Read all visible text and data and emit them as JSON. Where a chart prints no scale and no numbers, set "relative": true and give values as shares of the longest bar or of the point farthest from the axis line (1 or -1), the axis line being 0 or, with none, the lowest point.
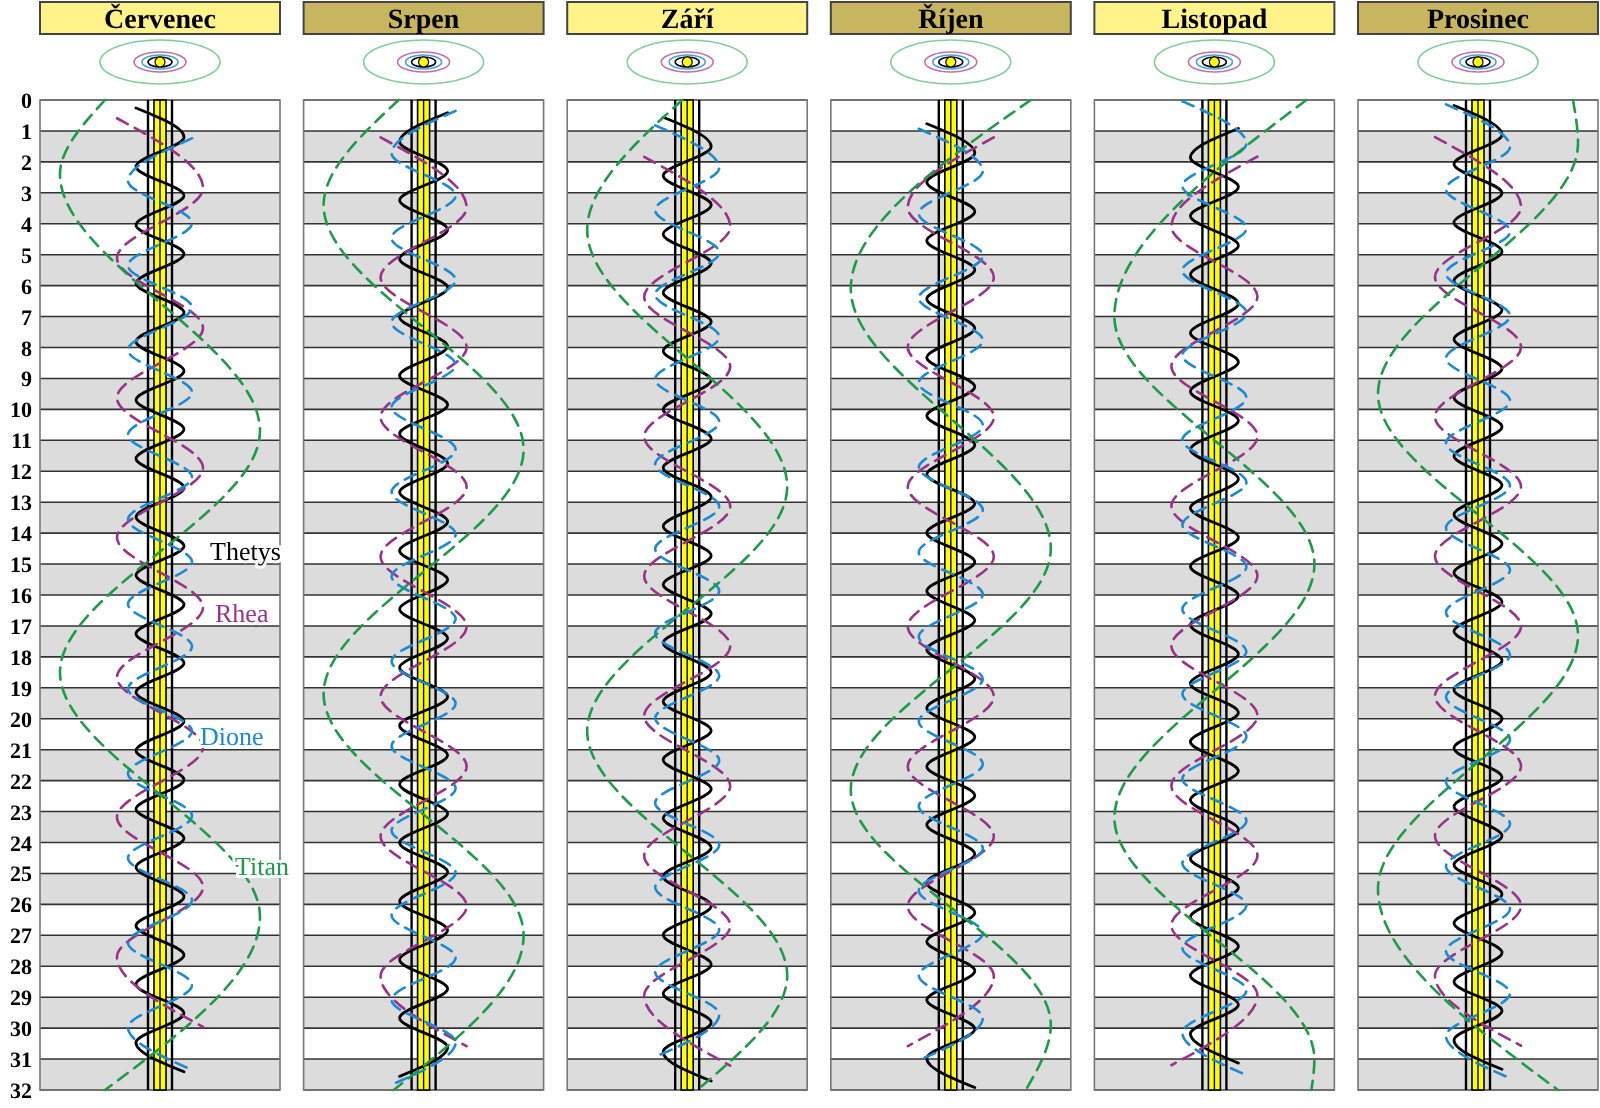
{
  "chart_data": [
    {
      "type": "line",
      "title": "Červenec",
      "orientation": "horizontal",
      "relative": true,
      "ylim": [
        32,
        0
      ],
      "yticks": [
        0,
        1,
        2,
        3,
        4,
        5,
        6,
        7,
        8,
        9,
        10,
        11,
        12,
        13,
        14,
        15,
        16,
        17,
        18,
        19,
        20,
        21,
        22,
        23,
        24,
        25,
        26,
        27,
        28,
        29,
        30,
        31,
        32
      ],
      "tick_labels": "y",
      "grid": "y",
      "bands": [
        {
          "axis": "y",
          "from": 1,
          "to": 2,
          "color": "#dcdcdc"
        },
        {
          "axis": "y",
          "from": 3,
          "to": 4,
          "color": "#dcdcdc"
        },
        {
          "axis": "y",
          "from": 5,
          "to": 6,
          "color": "#dcdcdc"
        },
        {
          "axis": "y",
          "from": 7,
          "to": 8,
          "color": "#dcdcdc"
        },
        {
          "axis": "y",
          "from": 9,
          "to": 10,
          "color": "#dcdcdc"
        },
        {
          "axis": "y",
          "from": 11,
          "to": 12,
          "color": "#dcdcdc"
        },
        {
          "axis": "y",
          "from": 13,
          "to": 14,
          "color": "#dcdcdc"
        },
        {
          "axis": "y",
          "from": 15,
          "to": 16,
          "color": "#dcdcdc"
        },
        {
          "axis": "y",
          "from": 17,
          "to": 18,
          "color": "#dcdcdc"
        },
        {
          "axis": "y",
          "from": 19,
          "to": 20,
          "color": "#dcdcdc"
        },
        {
          "axis": "y",
          "from": 21,
          "to": 22,
          "color": "#dcdcdc"
        },
        {
          "axis": "y",
          "from": 23,
          "to": 24,
          "color": "#dcdcdc"
        },
        {
          "axis": "y",
          "from": 25,
          "to": 26,
          "color": "#dcdcdc"
        },
        {
          "axis": "y",
          "from": 27,
          "to": 28,
          "color": "#dcdcdc"
        },
        {
          "axis": "y",
          "from": 29,
          "to": 30,
          "color": "#dcdcdc"
        },
        {
          "axis": "y",
          "from": 31,
          "to": 32,
          "color": "#dcdcdc"
        },
        {
          "axis": "x",
          "from": -0.06,
          "to": 0.06,
          "color": "#ffff00"
        }
      ],
      "ref_lines": [
        {
          "axis": "x",
          "value": -0.12,
          "color": "#000000"
        },
        {
          "axis": "x",
          "value": 0.12,
          "color": "#000000"
        }
      ],
      "series": [
        {
          "name": "Thetys",
          "color": "#000000",
          "line_style": "solid",
          "x": [
            0.26,
            1.2,
            2.15,
            3.09,
            4.04,
            4.98,
            5.92,
            6.87,
            7.81,
            8.76,
            9.7,
            10.64,
            11.59,
            12.53,
            13.48,
            14.42,
            15.36,
            16.31,
            17.25,
            18.2,
            19.14,
            20.08,
            21.03,
            21.97,
            22.92,
            23.86,
            24.8,
            25.75,
            26.69,
            27.64,
            28.58,
            29.52,
            30.47,
            31.41
          ],
          "values": [
            -0.24,
            0.24,
            -0.24,
            0.24,
            -0.24,
            0.24,
            -0.24,
            0.24,
            -0.24,
            0.24,
            -0.24,
            0.24,
            -0.24,
            0.24,
            -0.24,
            0.24,
            -0.24,
            0.24,
            -0.24,
            0.24,
            -0.24,
            0.24,
            -0.24,
            0.24,
            -0.24,
            0.24,
            -0.24,
            0.24,
            -0.24,
            0.24,
            -0.24,
            0.24,
            -0.24,
            0.24
          ]
        },
        {
          "name": "Rhea",
          "color": "#993388",
          "line_style": "dashed",
          "x": [
            0.59,
            2.85,
            5.11,
            7.37,
            9.63,
            11.89,
            14.14,
            16.4,
            18.66,
            20.92,
            23.18,
            25.44,
            27.7,
            29.96
          ],
          "values": [
            -0.43,
            0.43,
            -0.43,
            0.43,
            -0.43,
            0.43,
            -0.43,
            0.43,
            -0.43,
            0.43,
            -0.43,
            0.43,
            -0.43,
            0.43
          ]
        },
        {
          "name": "Dione",
          "color": "#1a8ad4",
          "line_style": "dashed",
          "x": [
            1.24,
            2.61,
            3.98,
            5.35,
            6.71,
            8.08,
            9.45,
            10.82,
            12.19,
            13.56,
            14.93,
            16.29,
            17.66,
            19.03,
            20.4,
            21.77,
            23.14,
            24.5,
            25.87,
            27.24,
            28.61,
            29.98,
            31.35
          ],
          "values": [
            0.32,
            -0.32,
            0.32,
            -0.32,
            0.32,
            -0.32,
            0.32,
            -0.32,
            0.32,
            -0.32,
            0.32,
            -0.32,
            0.32,
            -0.32,
            0.32,
            -0.32,
            0.32,
            -0.32,
            0.32,
            -0.32,
            0.32,
            -0.32,
            0.32
          ]
        },
        {
          "name": "Titan",
          "color": "#1f9a4a",
          "line_style": "dashed",
          "x": [
            0,
            2.4,
            10.7,
            18.5,
            26.4,
            32
          ],
          "values": [
            -0.55,
            -1,
            1,
            -1,
            1,
            -0.55
          ]
        }
      ]
    },
    {
      "type": "line",
      "title": "Srpen",
      "orientation": "horizontal",
      "relative": true,
      "ylim": [
        32,
        0
      ],
      "yticks": [
        0,
        1,
        2,
        3,
        4,
        5,
        6,
        7,
        8,
        9,
        10,
        11,
        12,
        13,
        14,
        15,
        16,
        17,
        18,
        19,
        20,
        21,
        22,
        23,
        24,
        25,
        26,
        27,
        28,
        29,
        30,
        31,
        32
      ],
      "tick_labels": false,
      "grid": "y",
      "bands": [
        {
          "axis": "y",
          "from": 1,
          "to": 2,
          "color": "#dcdcdc"
        },
        {
          "axis": "y",
          "from": 3,
          "to": 4,
          "color": "#dcdcdc"
        },
        {
          "axis": "y",
          "from": 5,
          "to": 6,
          "color": "#dcdcdc"
        },
        {
          "axis": "y",
          "from": 7,
          "to": 8,
          "color": "#dcdcdc"
        },
        {
          "axis": "y",
          "from": 9,
          "to": 10,
          "color": "#dcdcdc"
        },
        {
          "axis": "y",
          "from": 11,
          "to": 12,
          "color": "#dcdcdc"
        },
        {
          "axis": "y",
          "from": 13,
          "to": 14,
          "color": "#dcdcdc"
        },
        {
          "axis": "y",
          "from": 15,
          "to": 16,
          "color": "#dcdcdc"
        },
        {
          "axis": "y",
          "from": 17,
          "to": 18,
          "color": "#dcdcdc"
        },
        {
          "axis": "y",
          "from": 19,
          "to": 20,
          "color": "#dcdcdc"
        },
        {
          "axis": "y",
          "from": 21,
          "to": 22,
          "color": "#dcdcdc"
        },
        {
          "axis": "y",
          "from": 23,
          "to": 24,
          "color": "#dcdcdc"
        },
        {
          "axis": "y",
          "from": 25,
          "to": 26,
          "color": "#dcdcdc"
        },
        {
          "axis": "y",
          "from": 27,
          "to": 28,
          "color": "#dcdcdc"
        },
        {
          "axis": "y",
          "from": 29,
          "to": 30,
          "color": "#dcdcdc"
        },
        {
          "axis": "y",
          "from": 31,
          "to": 32,
          "color": "#dcdcdc"
        },
        {
          "axis": "x",
          "from": -0.06,
          "to": 0.06,
          "color": "#ffff00"
        }
      ],
      "ref_lines": [
        {
          "axis": "x",
          "value": -0.12,
          "color": "#000000"
        },
        {
          "axis": "x",
          "value": 0.12,
          "color": "#000000"
        }
      ],
      "series": [
        {
          "color": "#000000",
          "line_style": "solid",
          "x": [
            0.41,
            1.35,
            2.3,
            3.24,
            4.19,
            5.13,
            6.07,
            7.02,
            7.96,
            8.91,
            9.85,
            10.79,
            11.74,
            12.68,
            13.63,
            14.57,
            15.51,
            16.46,
            17.4,
            18.35,
            19.29,
            20.23,
            21.18,
            22.12,
            23.07,
            24.01,
            24.95,
            25.9,
            26.84,
            27.79,
            28.73,
            29.67,
            30.62,
            31.56
          ],
          "values": [
            0.24,
            -0.24,
            0.24,
            -0.24,
            0.24,
            -0.24,
            0.24,
            -0.24,
            0.24,
            -0.24,
            0.24,
            -0.24,
            0.24,
            -0.24,
            0.24,
            -0.24,
            0.24,
            -0.24,
            0.24,
            -0.24,
            0.24,
            -0.24,
            0.24,
            -0.24,
            0.24,
            -0.24,
            0.24,
            -0.24,
            0.24,
            -0.24,
            0.24,
            -0.24,
            0.24,
            -0.24
          ]
        },
        {
          "color": "#993388",
          "line_style": "dashed",
          "x": [
            1.21,
            3.47,
            5.73,
            7.99,
            10.25,
            12.51,
            14.76,
            17.02,
            19.28,
            21.54,
            23.8,
            26.06,
            28.32,
            30.58
          ],
          "values": [
            -0.43,
            0.43,
            -0.43,
            0.43,
            -0.43,
            0.43,
            -0.43,
            0.43,
            -0.43,
            0.43,
            -0.43,
            0.43,
            -0.43,
            0.43
          ]
        },
        {
          "color": "#1a8ad4",
          "line_style": "dashed",
          "x": [
            0.35,
            1.72,
            3.09,
            4.46,
            5.82,
            7.19,
            8.56,
            9.93,
            11.3,
            12.67,
            14.04,
            15.4,
            16.77,
            18.14,
            19.51,
            20.88,
            22.25,
            23.61,
            24.98,
            26.35,
            27.72,
            29.09,
            30.46,
            31.83
          ],
          "values": [
            0.32,
            -0.32,
            0.32,
            -0.32,
            0.32,
            -0.32,
            0.32,
            -0.32,
            0.32,
            -0.32,
            0.32,
            -0.32,
            0.32,
            -0.32,
            0.32,
            -0.32,
            0.32,
            -0.32,
            0.32,
            -0.32,
            0.32,
            -0.32,
            0.32,
            -0.32
          ]
        },
        {
          "color": "#1f9a4a",
          "line_style": "dashed",
          "x": [
            0,
            3.4,
            11.3,
            19.2,
            27.0,
            32
          ],
          "values": [
            -0.25,
            -1,
            1,
            -1,
            1,
            -0.3
          ]
        }
      ]
    },
    {
      "type": "line",
      "title": "Září",
      "orientation": "horizontal",
      "relative": true,
      "ylim": [
        32,
        0
      ],
      "yticks": [
        0,
        1,
        2,
        3,
        4,
        5,
        6,
        7,
        8,
        9,
        10,
        11,
        12,
        13,
        14,
        15,
        16,
        17,
        18,
        19,
        20,
        21,
        22,
        23,
        24,
        25,
        26,
        27,
        28,
        29,
        30,
        31,
        32
      ],
      "tick_labels": false,
      "grid": "y",
      "bands": [
        {
          "axis": "y",
          "from": 1,
          "to": 2,
          "color": "#dcdcdc"
        },
        {
          "axis": "y",
          "from": 3,
          "to": 4,
          "color": "#dcdcdc"
        },
        {
          "axis": "y",
          "from": 5,
          "to": 6,
          "color": "#dcdcdc"
        },
        {
          "axis": "y",
          "from": 7,
          "to": 8,
          "color": "#dcdcdc"
        },
        {
          "axis": "y",
          "from": 9,
          "to": 10,
          "color": "#dcdcdc"
        },
        {
          "axis": "y",
          "from": 11,
          "to": 12,
          "color": "#dcdcdc"
        },
        {
          "axis": "y",
          "from": 13,
          "to": 14,
          "color": "#dcdcdc"
        },
        {
          "axis": "y",
          "from": 15,
          "to": 16,
          "color": "#dcdcdc"
        },
        {
          "axis": "y",
          "from": 17,
          "to": 18,
          "color": "#dcdcdc"
        },
        {
          "axis": "y",
          "from": 19,
          "to": 20,
          "color": "#dcdcdc"
        },
        {
          "axis": "y",
          "from": 21,
          "to": 22,
          "color": "#dcdcdc"
        },
        {
          "axis": "y",
          "from": 23,
          "to": 24,
          "color": "#dcdcdc"
        },
        {
          "axis": "y",
          "from": 25,
          "to": 26,
          "color": "#dcdcdc"
        },
        {
          "axis": "y",
          "from": 27,
          "to": 28,
          "color": "#dcdcdc"
        },
        {
          "axis": "y",
          "from": 29,
          "to": 30,
          "color": "#dcdcdc"
        },
        {
          "axis": "y",
          "from": 31,
          "to": 32,
          "color": "#dcdcdc"
        },
        {
          "axis": "x",
          "from": -0.06,
          "to": 0.06,
          "color": "#ffff00"
        }
      ],
      "ref_lines": [
        {
          "axis": "x",
          "value": -0.12,
          "color": "#000000"
        },
        {
          "axis": "x",
          "value": 0.12,
          "color": "#000000"
        }
      ],
      "series": [
        {
          "color": "#000000",
          "line_style": "solid",
          "x": [
            0.56,
            1.5,
            2.45,
            3.39,
            4.34,
            5.28,
            6.22,
            7.17,
            8.11,
            9.06,
            10.0,
            10.94,
            11.89,
            12.83,
            13.78,
            14.72,
            15.66,
            16.61,
            17.55,
            18.5,
            19.44,
            20.38,
            21.33,
            22.27,
            23.22,
            24.16,
            25.1,
            26.05,
            26.99,
            27.94,
            28.88,
            29.82,
            30.77,
            31.71
          ],
          "values": [
            -0.24,
            0.24,
            -0.24,
            0.24,
            -0.24,
            0.24,
            -0.24,
            0.24,
            -0.24,
            0.24,
            -0.24,
            0.24,
            -0.24,
            0.24,
            -0.24,
            0.24,
            -0.24,
            0.24,
            -0.24,
            0.24,
            -0.24,
            0.24,
            -0.24,
            0.24,
            -0.24,
            0.24,
            -0.24,
            0.24,
            -0.24,
            0.24,
            -0.24,
            0.24,
            -0.24,
            0.24
          ]
        },
        {
          "color": "#993388",
          "line_style": "dashed",
          "x": [
            1.84,
            4.1,
            6.36,
            8.62,
            10.88,
            13.14,
            15.39,
            17.65,
            19.91,
            22.17,
            24.43,
            26.69,
            28.95,
            31.21
          ],
          "values": [
            -0.43,
            0.43,
            -0.43,
            0.43,
            -0.43,
            0.43,
            -0.43,
            0.43,
            -0.43,
            0.43,
            -0.43,
            0.43,
            -0.43,
            0.43
          ]
        },
        {
          "color": "#1a8ad4",
          "line_style": "dashed",
          "x": [
            0.82,
            2.19,
            3.56,
            4.93,
            6.29,
            7.66,
            9.03,
            10.4,
            11.77,
            13.14,
            14.51,
            15.87,
            17.24,
            18.61,
            19.98,
            21.35,
            22.72,
            24.08,
            25.45,
            26.82,
            28.19,
            29.56,
            30.93
          ],
          "values": [
            -0.32,
            0.32,
            -0.32,
            0.32,
            -0.32,
            0.32,
            -0.32,
            0.32,
            -0.32,
            0.32,
            -0.32,
            0.32,
            -0.32,
            0.32,
            -0.32,
            0.32,
            -0.32,
            0.32,
            -0.32,
            0.32,
            -0.32,
            0.32,
            -0.32
          ]
        },
        {
          "color": "#1f9a4a",
          "line_style": "dashed",
          "x": [
            0,
            4.2,
            12.5,
            20.4,
            28.3,
            32
          ],
          "values": [
            -0.05,
            -1,
            1,
            -1,
            1,
            0.1
          ]
        }
      ]
    },
    {
      "type": "line",
      "title": "Říjen",
      "orientation": "horizontal",
      "relative": true,
      "ylim": [
        32,
        0
      ],
      "yticks": [
        0,
        1,
        2,
        3,
        4,
        5,
        6,
        7,
        8,
        9,
        10,
        11,
        12,
        13,
        14,
        15,
        16,
        17,
        18,
        19,
        20,
        21,
        22,
        23,
        24,
        25,
        26,
        27,
        28,
        29,
        30,
        31,
        32
      ],
      "tick_labels": false,
      "grid": "y",
      "bands": [
        {
          "axis": "y",
          "from": 1,
          "to": 2,
          "color": "#dcdcdc"
        },
        {
          "axis": "y",
          "from": 3,
          "to": 4,
          "color": "#dcdcdc"
        },
        {
          "axis": "y",
          "from": 5,
          "to": 6,
          "color": "#dcdcdc"
        },
        {
          "axis": "y",
          "from": 7,
          "to": 8,
          "color": "#dcdcdc"
        },
        {
          "axis": "y",
          "from": 9,
          "to": 10,
          "color": "#dcdcdc"
        },
        {
          "axis": "y",
          "from": 11,
          "to": 12,
          "color": "#dcdcdc"
        },
        {
          "axis": "y",
          "from": 13,
          "to": 14,
          "color": "#dcdcdc"
        },
        {
          "axis": "y",
          "from": 15,
          "to": 16,
          "color": "#dcdcdc"
        },
        {
          "axis": "y",
          "from": 17,
          "to": 18,
          "color": "#dcdcdc"
        },
        {
          "axis": "y",
          "from": 19,
          "to": 20,
          "color": "#dcdcdc"
        },
        {
          "axis": "y",
          "from": 21,
          "to": 22,
          "color": "#dcdcdc"
        },
        {
          "axis": "y",
          "from": 23,
          "to": 24,
          "color": "#dcdcdc"
        },
        {
          "axis": "y",
          "from": 25,
          "to": 26,
          "color": "#dcdcdc"
        },
        {
          "axis": "y",
          "from": 27,
          "to": 28,
          "color": "#dcdcdc"
        },
        {
          "axis": "y",
          "from": 29,
          "to": 30,
          "color": "#dcdcdc"
        },
        {
          "axis": "y",
          "from": 31,
          "to": 32,
          "color": "#dcdcdc"
        },
        {
          "axis": "x",
          "from": -0.06,
          "to": 0.06,
          "color": "#ffff00"
        }
      ],
      "ref_lines": [
        {
          "axis": "x",
          "value": -0.12,
          "color": "#000000"
        },
        {
          "axis": "x",
          "value": 0.12,
          "color": "#000000"
        }
      ],
      "series": [
        {
          "color": "#000000",
          "line_style": "solid",
          "x": [
            0.77,
            1.71,
            2.66,
            3.6,
            4.55,
            5.49,
            6.43,
            7.38,
            8.32,
            9.27,
            10.21,
            11.15,
            12.1,
            13.04,
            13.99,
            14.93,
            15.87,
            16.82,
            17.76,
            18.71,
            19.65,
            20.59,
            21.54,
            22.48,
            23.43,
            24.37,
            25.31,
            26.26,
            27.2,
            28.15,
            29.09,
            30.03,
            30.98,
            31.92
          ],
          "values": [
            -0.24,
            0.24,
            -0.24,
            0.24,
            -0.24,
            0.24,
            -0.24,
            0.24,
            -0.24,
            0.24,
            -0.24,
            0.24,
            -0.24,
            0.24,
            -0.24,
            0.24,
            -0.24,
            0.24,
            -0.24,
            0.24,
            -0.24,
            0.24,
            -0.24,
            0.24,
            -0.24,
            0.24,
            -0.24,
            0.24,
            -0.24,
            0.24,
            -0.24,
            0.24,
            -0.24,
            0.24
          ]
        },
        {
          "color": "#993388",
          "line_style": "dashed",
          "x": [
            1.21,
            3.47,
            5.73,
            7.99,
            10.25,
            12.51,
            14.76,
            17.02,
            19.28,
            21.54,
            23.8,
            26.06,
            28.32,
            30.58
          ],
          "values": [
            0.43,
            -0.43,
            0.43,
            -0.43,
            0.43,
            -0.43,
            0.43,
            -0.43,
            0.43,
            -0.43,
            0.43,
            -0.43,
            0.43,
            -0.43
          ]
        },
        {
          "color": "#1a8ad4",
          "line_style": "dashed",
          "x": [
            0.93,
            2.3,
            3.67,
            5.04,
            6.4,
            7.77,
            9.14,
            10.51,
            11.88,
            13.25,
            14.62,
            15.98,
            17.35,
            18.72,
            20.09,
            21.46,
            22.83,
            24.19,
            25.56,
            26.93,
            28.3,
            29.67,
            31.04
          ],
          "values": [
            -0.32,
            0.32,
            -0.32,
            0.32,
            -0.32,
            0.32,
            -0.32,
            0.32,
            -0.32,
            0.32,
            -0.32,
            0.32,
            -0.32,
            0.32,
            -0.32,
            0.32,
            -0.32,
            0.32,
            -0.32,
            0.32,
            -0.32,
            0.32,
            -0.32
          ]
        },
        {
          "color": "#1f9a4a",
          "line_style": "dashed",
          "x": [
            0,
            6.1,
            14.5,
            22.3,
            29.9,
            32
          ],
          "values": [
            0.8,
            -1,
            1,
            -1,
            1,
            0.75
          ]
        }
      ]
    },
    {
      "type": "line",
      "title": "Listopad",
      "orientation": "horizontal",
      "relative": true,
      "ylim": [
        32,
        0
      ],
      "yticks": [
        0,
        1,
        2,
        3,
        4,
        5,
        6,
        7,
        8,
        9,
        10,
        11,
        12,
        13,
        14,
        15,
        16,
        17,
        18,
        19,
        20,
        21,
        22,
        23,
        24,
        25,
        26,
        27,
        28,
        29,
        30,
        31,
        32
      ],
      "tick_labels": false,
      "grid": "y",
      "bands": [
        {
          "axis": "y",
          "from": 1,
          "to": 2,
          "color": "#dcdcdc"
        },
        {
          "axis": "y",
          "from": 3,
          "to": 4,
          "color": "#dcdcdc"
        },
        {
          "axis": "y",
          "from": 5,
          "to": 6,
          "color": "#dcdcdc"
        },
        {
          "axis": "y",
          "from": 7,
          "to": 8,
          "color": "#dcdcdc"
        },
        {
          "axis": "y",
          "from": 9,
          "to": 10,
          "color": "#dcdcdc"
        },
        {
          "axis": "y",
          "from": 11,
          "to": 12,
          "color": "#dcdcdc"
        },
        {
          "axis": "y",
          "from": 13,
          "to": 14,
          "color": "#dcdcdc"
        },
        {
          "axis": "y",
          "from": 15,
          "to": 16,
          "color": "#dcdcdc"
        },
        {
          "axis": "y",
          "from": 17,
          "to": 18,
          "color": "#dcdcdc"
        },
        {
          "axis": "y",
          "from": 19,
          "to": 20,
          "color": "#dcdcdc"
        },
        {
          "axis": "y",
          "from": 21,
          "to": 22,
          "color": "#dcdcdc"
        },
        {
          "axis": "y",
          "from": 23,
          "to": 24,
          "color": "#dcdcdc"
        },
        {
          "axis": "y",
          "from": 25,
          "to": 26,
          "color": "#dcdcdc"
        },
        {
          "axis": "y",
          "from": 27,
          "to": 28,
          "color": "#dcdcdc"
        },
        {
          "axis": "y",
          "from": 29,
          "to": 30,
          "color": "#dcdcdc"
        },
        {
          "axis": "y",
          "from": 31,
          "to": 32,
          "color": "#dcdcdc"
        },
        {
          "axis": "x",
          "from": -0.06,
          "to": 0.06,
          "color": "#ffff00"
        }
      ],
      "ref_lines": [
        {
          "axis": "x",
          "value": -0.12,
          "color": "#000000"
        },
        {
          "axis": "x",
          "value": 0.12,
          "color": "#000000"
        }
      ],
      "series": [
        {
          "color": "#000000",
          "line_style": "solid",
          "x": [
            0.92,
            1.86,
            2.81,
            3.75,
            4.7,
            5.64,
            6.58,
            7.53,
            8.47,
            9.42,
            10.36,
            11.3,
            12.25,
            13.19,
            14.14,
            15.08,
            16.02,
            16.97,
            17.91,
            18.86,
            19.8,
            20.74,
            21.69,
            22.63,
            23.58,
            24.52,
            25.46,
            26.41,
            27.35,
            28.3,
            29.24,
            30.18,
            31.13
          ],
          "values": [
            0.24,
            -0.24,
            0.24,
            -0.24,
            0.24,
            -0.24,
            0.24,
            -0.24,
            0.24,
            -0.24,
            0.24,
            -0.24,
            0.24,
            -0.24,
            0.24,
            -0.24,
            0.24,
            -0.24,
            0.24,
            -0.24,
            0.24,
            -0.24,
            0.24,
            -0.24,
            0.24,
            -0.24,
            0.24,
            -0.24,
            0.24,
            -0.24,
            0.24,
            -0.24,
            0.24
          ]
        },
        {
          "color": "#993388",
          "line_style": "dashed",
          "x": [
            1.83,
            4.09,
            6.35,
            8.61,
            10.87,
            13.13,
            15.38,
            17.64,
            19.9,
            22.16,
            24.42,
            26.68,
            28.94,
            31.2
          ],
          "values": [
            0.43,
            -0.43,
            0.43,
            -0.43,
            0.43,
            -0.43,
            0.43,
            -0.43,
            0.43,
            -0.43,
            0.43,
            -0.43,
            0.43,
            -0.43
          ]
        },
        {
          "color": "#1a8ad4",
          "line_style": "dashed",
          "x": [
            0.04,
            1.41,
            2.78,
            4.15,
            5.51,
            6.88,
            8.25,
            9.62,
            10.99,
            12.36,
            13.73,
            15.09,
            16.46,
            17.83,
            19.2,
            20.57,
            21.94,
            23.3,
            24.67,
            26.04,
            27.41,
            28.78,
            30.15,
            31.52
          ],
          "values": [
            -0.32,
            0.32,
            -0.32,
            0.32,
            -0.32,
            0.32,
            -0.32,
            0.32,
            -0.32,
            0.32,
            -0.32,
            0.32,
            -0.32,
            0.32,
            -0.32,
            0.32,
            -0.32,
            0.32,
            -0.32,
            0.32,
            -0.32,
            0.32,
            -0.32,
            0.32
          ]
        },
        {
          "color": "#1f9a4a",
          "line_style": "dashed",
          "x": [
            0,
            7.0,
            15.0,
            23.2,
            31.0,
            32
          ],
          "values": [
            0.92,
            -1,
            1,
            -1,
            1,
            0.97
          ]
        }
      ]
    },
    {
      "type": "line",
      "title": "Prosinec",
      "orientation": "horizontal",
      "relative": true,
      "ylim": [
        32,
        0
      ],
      "yticks": [
        0,
        1,
        2,
        3,
        4,
        5,
        6,
        7,
        8,
        9,
        10,
        11,
        12,
        13,
        14,
        15,
        16,
        17,
        18,
        19,
        20,
        21,
        22,
        23,
        24,
        25,
        26,
        27,
        28,
        29,
        30,
        31,
        32
      ],
      "tick_labels": false,
      "grid": "y",
      "bands": [
        {
          "axis": "y",
          "from": 1,
          "to": 2,
          "color": "#dcdcdc"
        },
        {
          "axis": "y",
          "from": 3,
          "to": 4,
          "color": "#dcdcdc"
        },
        {
          "axis": "y",
          "from": 5,
          "to": 6,
          "color": "#dcdcdc"
        },
        {
          "axis": "y",
          "from": 7,
          "to": 8,
          "color": "#dcdcdc"
        },
        {
          "axis": "y",
          "from": 9,
          "to": 10,
          "color": "#dcdcdc"
        },
        {
          "axis": "y",
          "from": 11,
          "to": 12,
          "color": "#dcdcdc"
        },
        {
          "axis": "y",
          "from": 13,
          "to": 14,
          "color": "#dcdcdc"
        },
        {
          "axis": "y",
          "from": 15,
          "to": 16,
          "color": "#dcdcdc"
        },
        {
          "axis": "y",
          "from": 17,
          "to": 18,
          "color": "#dcdcdc"
        },
        {
          "axis": "y",
          "from": 19,
          "to": 20,
          "color": "#dcdcdc"
        },
        {
          "axis": "y",
          "from": 21,
          "to": 22,
          "color": "#dcdcdc"
        },
        {
          "axis": "y",
          "from": 23,
          "to": 24,
          "color": "#dcdcdc"
        },
        {
          "axis": "y",
          "from": 25,
          "to": 26,
          "color": "#dcdcdc"
        },
        {
          "axis": "y",
          "from": 27,
          "to": 28,
          "color": "#dcdcdc"
        },
        {
          "axis": "y",
          "from": 29,
          "to": 30,
          "color": "#dcdcdc"
        },
        {
          "axis": "y",
          "from": 31,
          "to": 32,
          "color": "#dcdcdc"
        },
        {
          "axis": "x",
          "from": -0.06,
          "to": 0.06,
          "color": "#ffff00"
        }
      ],
      "ref_lines": [
        {
          "axis": "x",
          "value": -0.12,
          "color": "#000000"
        },
        {
          "axis": "x",
          "value": 0.12,
          "color": "#000000"
        }
      ],
      "series": [
        {
          "color": "#000000",
          "line_style": "solid",
          "x": [
            0.18,
            1.12,
            2.07,
            3.01,
            3.96,
            4.9,
            5.84,
            6.79,
            7.73,
            8.68,
            9.62,
            10.56,
            11.51,
            12.45,
            13.4,
            14.34,
            15.28,
            16.23,
            17.17,
            18.12,
            19.06,
            20.0,
            20.95,
            21.89,
            22.84,
            23.78,
            24.72,
            25.67,
            26.61,
            27.56,
            28.5,
            29.44,
            30.39,
            31.33
          ],
          "values": [
            -0.24,
            0.24,
            -0.24,
            0.24,
            -0.24,
            0.24,
            -0.24,
            0.24,
            -0.24,
            0.24,
            -0.24,
            0.24,
            -0.24,
            0.24,
            -0.24,
            0.24,
            -0.24,
            0.24,
            -0.24,
            0.24,
            -0.24,
            0.24,
            -0.24,
            0.24,
            -0.24,
            0.24,
            -0.24,
            0.24,
            -0.24,
            0.24,
            -0.24,
            0.24,
            -0.24,
            0.24
          ]
        },
        {
          "color": "#993388",
          "line_style": "dashed",
          "x": [
            1.2,
            3.46,
            5.72,
            7.98,
            10.24,
            12.5,
            14.75,
            17.01,
            19.27,
            21.53,
            23.79,
            26.05,
            28.31,
            30.57
          ],
          "values": [
            -0.43,
            0.43,
            -0.43,
            0.43,
            -0.43,
            0.43,
            -0.43,
            0.43,
            -0.43,
            0.43,
            -0.43,
            0.43,
            -0.43,
            0.43
          ]
        },
        {
          "color": "#1a8ad4",
          "line_style": "dashed",
          "x": [
            0.14,
            1.51,
            2.88,
            4.25,
            5.61,
            6.98,
            8.35,
            9.72,
            11.09,
            12.46,
            13.83,
            15.19,
            16.56,
            17.93,
            19.3,
            20.67,
            22.04,
            23.4,
            24.77,
            26.14,
            27.51,
            28.88,
            30.25,
            31.62
          ],
          "values": [
            -0.32,
            0.32,
            -0.32,
            0.32,
            -0.32,
            0.32,
            -0.32,
            0.32,
            -0.32,
            0.32,
            -0.32,
            0.32,
            -0.32,
            0.32,
            -0.32,
            0.32,
            -0.32,
            0.32,
            -0.32,
            0.32,
            -0.32,
            0.32,
            -0.32,
            0.32
          ]
        },
        {
          "color": "#1f9a4a",
          "line_style": "dashed",
          "x": [
            0,
            1.4,
            9.5,
            17.3,
            25.5,
            32
          ],
          "values": [
            0.95,
            1,
            -1,
            1,
            -1,
            0.8
          ]
        }
      ]
    }
  ]
}
